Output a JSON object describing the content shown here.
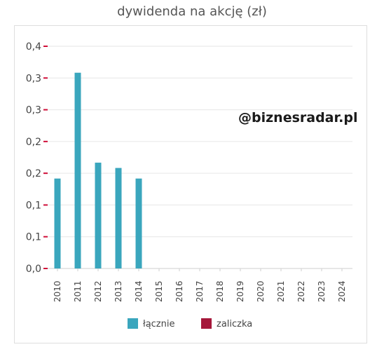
{
  "title": "dywidenda na akcję (zł)",
  "watermark": "@biznesradar.pl",
  "chart_data": {
    "type": "bar",
    "categories": [
      "2010",
      "2011",
      "2012",
      "2013",
      "2014",
      "2015",
      "2016",
      "2017",
      "2018",
      "2019",
      "2020",
      "2021",
      "2022",
      "2023",
      "2024"
    ],
    "series": [
      {
        "name": "łącznie",
        "color": "#3aa6bd",
        "values": [
          0.17,
          0.37,
          0.2,
          0.19,
          0.17,
          null,
          null,
          null,
          null,
          null,
          null,
          null,
          null,
          null,
          null
        ]
      },
      {
        "name": "zaliczka",
        "color": "#a5173a",
        "values": [
          null,
          null,
          null,
          null,
          null,
          null,
          null,
          null,
          null,
          null,
          null,
          null,
          null,
          null,
          null
        ]
      }
    ],
    "y_tick_labels": [
      "0,0",
      "0,1",
      "0,1",
      "0,2",
      "0,2",
      "0,3",
      "0,3",
      "0,4"
    ],
    "ylim": [
      0,
      0.42
    ],
    "grid": true,
    "legend_position": "bottom"
  }
}
